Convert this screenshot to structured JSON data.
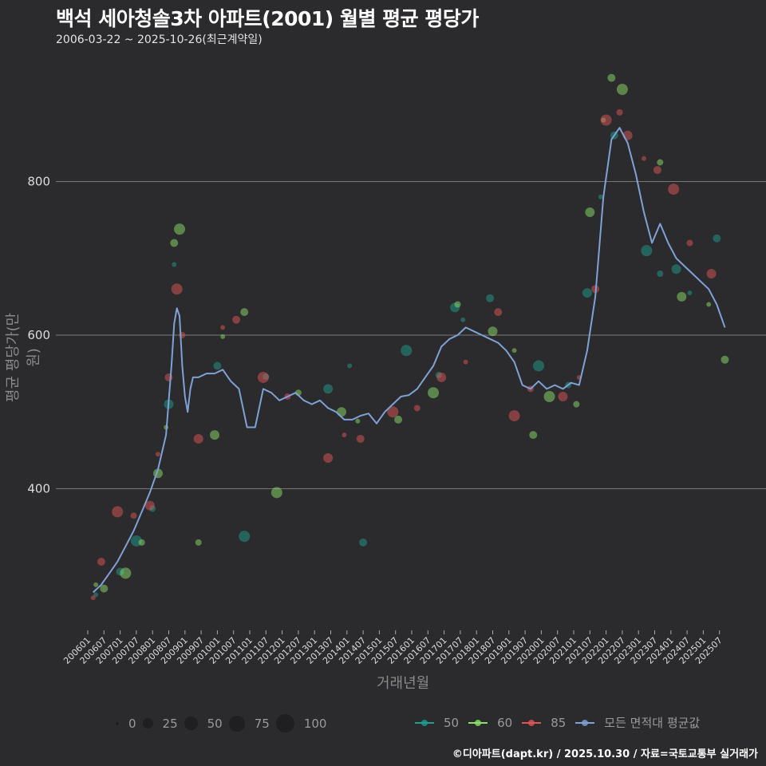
{
  "header": {
    "title": "백석 세아청솔3차 아파트(2001) 월별 평균 평당가",
    "subtitle": "2006-03-22 ~ 2025-10-26(최근계약일)"
  },
  "axes": {
    "ylabel": "평균 평당가(만 원)",
    "xlabel": "거래년월"
  },
  "legend": {
    "size": [
      {
        "label": "0",
        "size": 4
      },
      {
        "label": "25",
        "size": 13
      },
      {
        "label": "50",
        "size": 17
      },
      {
        "label": "75",
        "size": 20
      },
      {
        "label": "100",
        "size": 23
      }
    ],
    "color": [
      {
        "label": "50",
        "color": "#1f9e8e"
      },
      {
        "label": "60",
        "color": "#8be06a"
      },
      {
        "label": "85",
        "color": "#e05555"
      },
      {
        "label": "모든 면적대 평균값",
        "color": "#7fa2d6"
      }
    ]
  },
  "credit": "©디아파트(dapt.kr) / 2025.10.30 / 자료=국토교통부 실거래가",
  "chart_data": {
    "type": "scatter",
    "title": "백석 세아청솔3차 아파트(2001) 월별 평균 평당가",
    "subtitle": "2006-03-22 ~ 2025-10-26(최근계약일)",
    "xlabel": "거래년월",
    "ylabel": "평균 평당가(만 원)",
    "ylim": [
      215,
      955
    ],
    "yticks": [
      400,
      600,
      800
    ],
    "grid": "horizontal",
    "legend_position": "bottom",
    "x_ticks": [
      "200601",
      "200607",
      "200701",
      "200707",
      "200801",
      "200807",
      "200901",
      "200907",
      "201001",
      "201007",
      "201101",
      "201107",
      "201201",
      "201207",
      "201301",
      "201307",
      "201401",
      "201407",
      "201501",
      "201507",
      "201601",
      "201607",
      "201701",
      "201707",
      "201801",
      "201807",
      "201901",
      "201907",
      "202001",
      "202007",
      "202101",
      "202107",
      "202201",
      "202207",
      "202301",
      "202307",
      "202401",
      "202407",
      "202501",
      "202507"
    ],
    "series": [
      {
        "name": "모든 면적대 평균값",
        "kind": "line",
        "color": "#7fa2d6",
        "x": [
          "200603",
          "200606",
          "200609",
          "200612",
          "200703",
          "200706",
          "200709",
          "200712",
          "200803",
          "200806",
          "200808",
          "200809",
          "200810",
          "200811",
          "200812",
          "200901",
          "200902",
          "200903",
          "200904",
          "200906",
          "200909",
          "200912",
          "201003",
          "201006",
          "201009",
          "201012",
          "201103",
          "201106",
          "201109",
          "201112",
          "201203",
          "201206",
          "201209",
          "201212",
          "201303",
          "201306",
          "201309",
          "201312",
          "201403",
          "201406",
          "201409",
          "201412",
          "201503",
          "201506",
          "201509",
          "201512",
          "201603",
          "201606",
          "201609",
          "201612",
          "201703",
          "201706",
          "201709",
          "201712",
          "201803",
          "201806",
          "201809",
          "201812",
          "201903",
          "201906",
          "201909",
          "201912",
          "202003",
          "202006",
          "202009",
          "202012",
          "202103",
          "202106",
          "202109",
          "202112",
          "202203",
          "202206",
          "202209",
          "202212",
          "202303",
          "202306",
          "202309",
          "202312",
          "202403",
          "202406",
          "202409",
          "202412",
          "202503",
          "202506",
          "202509"
        ],
        "values": [
          265,
          275,
          290,
          305,
          325,
          345,
          370,
          395,
          425,
          470,
          560,
          615,
          635,
          625,
          560,
          520,
          500,
          530,
          545,
          545,
          550,
          550,
          555,
          540,
          530,
          480,
          480,
          530,
          525,
          515,
          520,
          525,
          515,
          510,
          515,
          505,
          500,
          490,
          490,
          495,
          498,
          485,
          500,
          510,
          520,
          522,
          530,
          545,
          560,
          585,
          595,
          600,
          610,
          605,
          600,
          595,
          590,
          580,
          565,
          535,
          530,
          540,
          530,
          535,
          530,
          538,
          535,
          580,
          650,
          780,
          855,
          870,
          850,
          810,
          760,
          720,
          745,
          720,
          700,
          690,
          680,
          670,
          660,
          640,
          610
        ]
      },
      {
        "name": "50",
        "kind": "points",
        "color": "#1f9e8e",
        "x": [
          "200604",
          "200701",
          "200707",
          "200801",
          "200807",
          "200809",
          "201001",
          "201011",
          "201107",
          "201306",
          "201402",
          "201407",
          "201511",
          "201611",
          "201705",
          "201708",
          "201806",
          "201912",
          "202011",
          "202106",
          "202111",
          "202204",
          "202304",
          "202309",
          "202403",
          "202408",
          "202506"
        ],
        "values": [
          262,
          292,
          332,
          374,
          510,
          692,
          560,
          338,
          546,
          530,
          560,
          330,
          580,
          548,
          636,
          620,
          648,
          560,
          535,
          655,
          780,
          860,
          710,
          680,
          686,
          655,
          726
        ]
      },
      {
        "name": "60",
        "kind": "points",
        "color": "#8be06a",
        "x": [
          "200604",
          "200607",
          "200703",
          "200709",
          "200803",
          "200806",
          "200809",
          "200811",
          "200906",
          "200912",
          "201003",
          "201011",
          "201111",
          "201207",
          "201311",
          "201405",
          "201508",
          "201609",
          "201706",
          "201807",
          "201903",
          "201910",
          "202004",
          "202102",
          "202107",
          "202112",
          "202203",
          "202207",
          "202309",
          "202405",
          "202503",
          "202509"
        ],
        "values": [
          275,
          270,
          290,
          330,
          420,
          480,
          720,
          738,
          330,
          470,
          598,
          630,
          395,
          525,
          500,
          488,
          490,
          525,
          640,
          605,
          580,
          470,
          520,
          510,
          760,
          880,
          935,
          920,
          825,
          650,
          640,
          568
        ]
      },
      {
        "name": "85",
        "kind": "points",
        "color": "#e05555",
        "x": [
          "200603",
          "200606",
          "200612",
          "200706",
          "200712",
          "200803",
          "200807",
          "200810",
          "200812",
          "200906",
          "201003",
          "201008",
          "201106",
          "201203",
          "201306",
          "201312",
          "201406",
          "201506",
          "201603",
          "201612",
          "201709",
          "201809",
          "201903",
          "201909",
          "202009",
          "202103",
          "202109",
          "202201",
          "202206",
          "202209",
          "202303",
          "202308",
          "202402",
          "202408",
          "202504"
        ],
        "values": [
          258,
          305,
          370,
          365,
          378,
          445,
          545,
          660,
          600,
          465,
          610,
          620,
          545,
          520,
          440,
          470,
          465,
          500,
          505,
          545,
          565,
          630,
          495,
          530,
          520,
          545,
          660,
          880,
          890,
          860,
          830,
          815,
          790,
          720,
          680
        ]
      }
    ]
  }
}
